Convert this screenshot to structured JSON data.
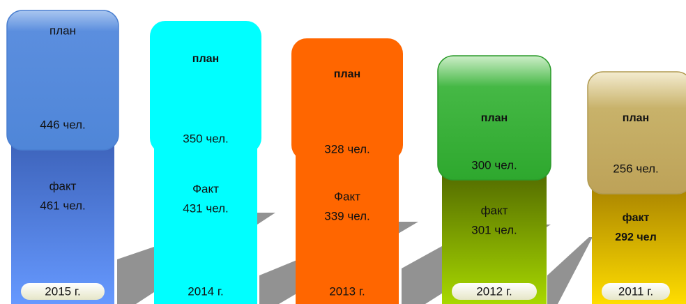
{
  "columns": [
    {
      "year": "2015 г.",
      "plan_label": "план",
      "plan_value": "446 чел.",
      "fact_label": "факт",
      "fact_value": "461 чел."
    },
    {
      "year": "2014 г.",
      "plan_label": "план",
      "plan_value": "350 чел.",
      "fact_label": "Факт",
      "fact_value": "431 чел."
    },
    {
      "year": "2013 г.",
      "plan_label": "план",
      "plan_value": "328 чел.",
      "fact_label": "Факт",
      "fact_value": "339 чел."
    },
    {
      "year": "2012 г.",
      "plan_label": "план",
      "plan_value": "300 чел.",
      "fact_label": "факт",
      "fact_value": "301 чел."
    },
    {
      "year": "2011 г.",
      "plan_label": "план",
      "plan_value": "256 чел.",
      "fact_label": "факт",
      "fact_value": "292 чел"
    }
  ]
}
